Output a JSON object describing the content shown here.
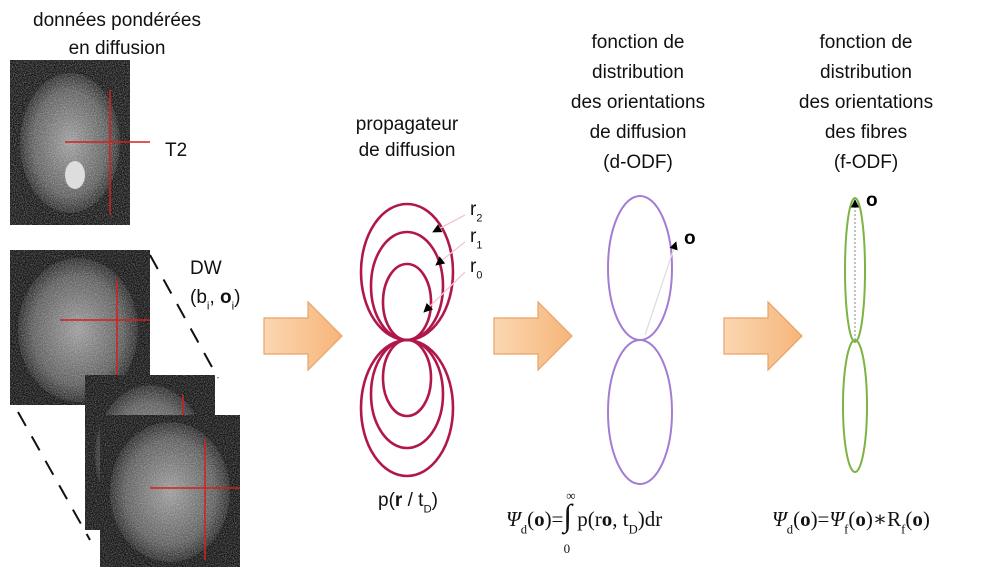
{
  "input": {
    "title": [
      "données pondérées",
      "en diffusion"
    ],
    "t2": "T2",
    "dw_name": "DW",
    "dw_params": [
      {
        "text": "("
      },
      {
        "text": "b"
      },
      {
        "text": "i",
        "style": "sub"
      },
      {
        "text": ", "
      },
      {
        "text": "o",
        "style": "bold"
      },
      {
        "text": "i",
        "style": "sub"
      },
      {
        "text": ")"
      }
    ]
  },
  "propagator": {
    "title": [
      "propagateur",
      "de diffusion"
    ],
    "radii": [
      [
        {
          "text": "r"
        },
        {
          "text": "2",
          "style": "sub"
        }
      ],
      [
        {
          "text": "r"
        },
        {
          "text": "1",
          "style": "sub"
        }
      ],
      [
        {
          "text": "r"
        },
        {
          "text": "0",
          "style": "sub"
        }
      ]
    ],
    "formula": [
      {
        "text": "p("
      },
      {
        "text": "r",
        "style": "bold"
      },
      {
        "text": " / t"
      },
      {
        "text": "D",
        "style": "sub"
      },
      {
        "text": ")"
      }
    ]
  },
  "d_odf": {
    "title": [
      "fonction de",
      "distribution",
      "des orientations",
      "de diffusion",
      "(d-ODF)"
    ],
    "direction": "o",
    "formula": [
      {
        "text": "Ψ",
        "style": "italic"
      },
      {
        "text": "d",
        "style": "sub"
      },
      {
        "text": "("
      },
      {
        "text": "o",
        "style": "bold"
      },
      {
        "text": ")="
      },
      {
        "text": "∫",
        "style": "big"
      },
      {
        "text": " p(r"
      },
      {
        "text": "o",
        "style": "bold"
      },
      {
        "text": ", t"
      },
      {
        "text": "D",
        "style": "sub"
      },
      {
        "text": ")dr"
      }
    ],
    "limits": {
      "upper": "∞",
      "lower": "0"
    }
  },
  "f_odf": {
    "title": [
      "fonction de",
      "distribution",
      "des orientations",
      "des fibres",
      "(f-ODF)"
    ],
    "direction": "o",
    "formula": [
      {
        "text": "Ψ",
        "style": "italic"
      },
      {
        "text": "d",
        "style": "sub"
      },
      {
        "text": "("
      },
      {
        "text": "o",
        "style": "bold"
      },
      {
        "text": ")="
      },
      {
        "text": "Ψ",
        "style": "italic"
      },
      {
        "text": "f",
        "style": "sub"
      },
      {
        "text": "("
      },
      {
        "text": "o",
        "style": "bold"
      },
      {
        "text": ")∗R"
      },
      {
        "text": "f",
        "style": "sub"
      },
      {
        "text": "("
      },
      {
        "text": "o",
        "style": "bold"
      },
      {
        "text": ")"
      }
    ]
  }
}
